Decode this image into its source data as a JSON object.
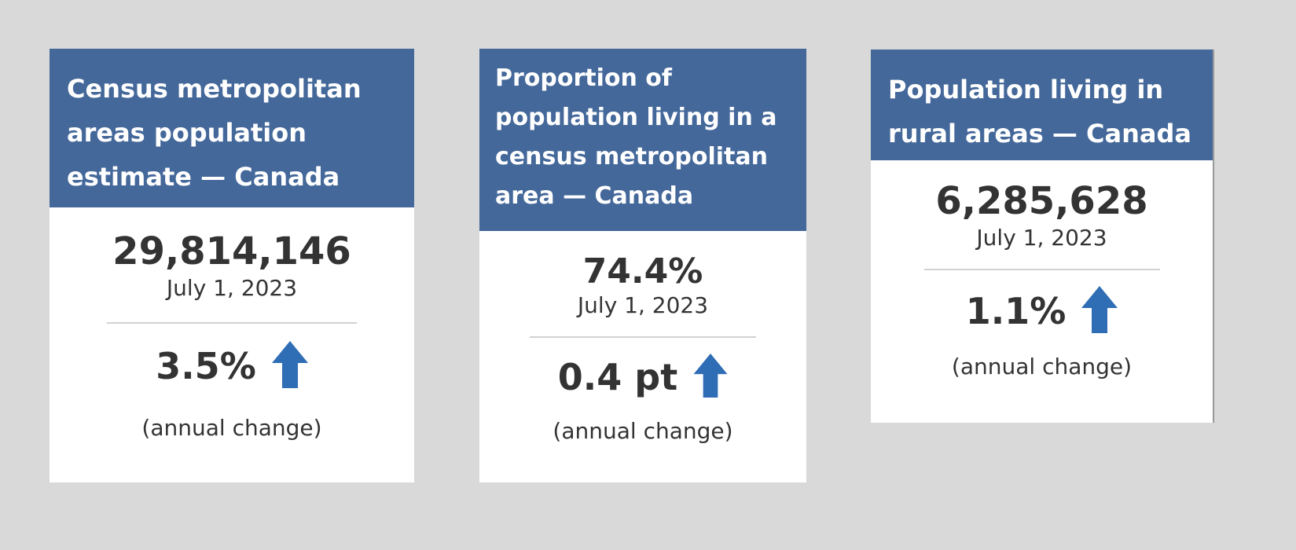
{
  "cards": [
    {
      "title": "Census metropolitan areas population estimate — Canada",
      "value": "29,814,146",
      "date": "July 1, 2023",
      "change": "3.5%",
      "change_direction": "up-arrow-icon",
      "change_label": "(annual change)"
    },
    {
      "title": "Proportion of population living in a census metropolitan area — Canada",
      "value": "74.4%",
      "date": "July 1, 2023",
      "change": "0.4 pt",
      "change_direction": "up-arrow-icon",
      "change_label": "(annual change)"
    },
    {
      "title": "Population living in rural areas — Canada",
      "value": "6,285,628",
      "date": "July 1, 2023",
      "change": "1.1%",
      "change_direction": "up-arrow-icon",
      "change_label": "(annual change)"
    }
  ],
  "colors": {
    "background": "#d9d9d9",
    "header": "#44689a",
    "arrow": "#2f6db5",
    "text": "#333333"
  }
}
